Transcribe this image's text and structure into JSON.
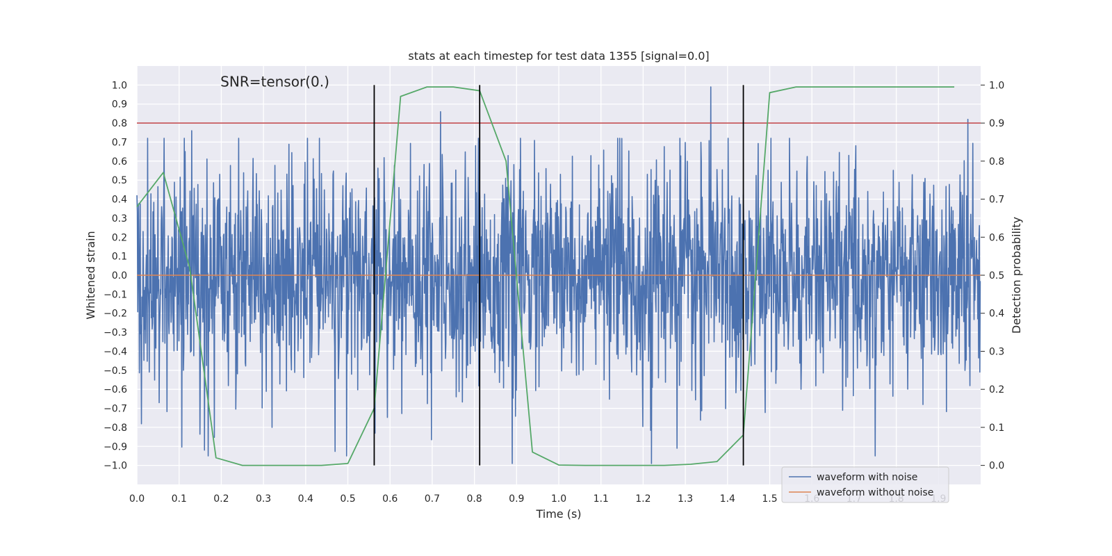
{
  "chart_data": {
    "type": "line",
    "title": "stats at each timestep for test data 1355 [signal=0.0]",
    "xlabel": "Time (s)",
    "ylabel_left": "Whitened strain",
    "ylabel_right": "Detection probability",
    "xlim": [
      0.0,
      2.0
    ],
    "ylim_left": [
      -1.1,
      1.1
    ],
    "ylim_right": [
      -0.05,
      1.05
    ],
    "xticks": [
      "0.0",
      "0.1",
      "0.2",
      "0.3",
      "0.4",
      "0.5",
      "0.6",
      "0.7",
      "0.8",
      "0.9",
      "1.0",
      "1.1",
      "1.2",
      "1.3",
      "1.4",
      "1.5",
      "1.6",
      "1.7",
      "1.8",
      "1.9"
    ],
    "yticks_left": [
      "1.0",
      "0.9",
      "0.8",
      "0.7",
      "0.6",
      "0.5",
      "0.4",
      "0.3",
      "0.2",
      "0.1",
      "0.0",
      "−0.1",
      "−0.2",
      "−0.3",
      "−0.4",
      "−0.5",
      "−0.6",
      "−0.7",
      "−0.8",
      "−0.9",
      "−1.0"
    ],
    "yticks_right": [
      "1.0",
      "0.9",
      "0.8",
      "0.7",
      "0.6",
      "0.5",
      "0.4",
      "0.3",
      "0.2",
      "0.1",
      "0.0"
    ],
    "annotation": "SNR=tensor(0.)",
    "grid": true,
    "legend_position": "bottom-right",
    "legend": [
      "waveform with noise",
      "waveform without noise"
    ],
    "series": [
      {
        "name": "waveform with noise",
        "axis": "left",
        "color": "#4c72b0",
        "noise_amplitude": 0.28,
        "peaks": [
          [
            0.13,
            0.76
          ],
          [
            0.72,
            0.86
          ],
          [
            1.36,
            0.99
          ],
          [
            1.97,
            0.82
          ],
          [
            0.16,
            -0.92
          ],
          [
            1.22,
            -0.99
          ],
          [
            1.28,
            -0.91
          ],
          [
            0.89,
            -0.99
          ],
          [
            1.75,
            -0.95
          ],
          [
            0.32,
            -0.8
          ]
        ]
      },
      {
        "name": "waveform without noise",
        "axis": "left",
        "color": "#dd8452",
        "x": [
          0.0,
          2.0
        ],
        "y": [
          0.0,
          0.0
        ]
      },
      {
        "axis": "right",
        "color": "#55a868",
        "x": [
          0.0,
          0.0625,
          0.125,
          0.1875,
          0.25,
          0.3125,
          0.375,
          0.4375,
          0.5,
          0.5625,
          0.625,
          0.6875,
          0.75,
          0.8125,
          0.875,
          0.9375,
          1.0,
          1.0625,
          1.125,
          1.1875,
          1.25,
          1.3125,
          1.375,
          1.4375,
          1.5,
          1.5625,
          1.625,
          1.6875,
          1.75,
          1.8125,
          1.875,
          1.9375
        ],
        "y": [
          0.68,
          0.77,
          0.52,
          0.02,
          0.0,
          0.0,
          0.0,
          0.0,
          0.005,
          0.15,
          0.97,
          0.995,
          0.995,
          0.985,
          0.8,
          0.035,
          0.001,
          0.0,
          0.0,
          0.0,
          0.0,
          0.003,
          0.01,
          0.08,
          0.98,
          0.995,
          0.995,
          0.995,
          0.995,
          0.995,
          0.995,
          0.995
        ]
      }
    ],
    "threshold_line": {
      "color": "#c44e52",
      "value_right": 0.9
    },
    "vertical_lines": [
      0.5625,
      0.8125,
      1.4375
    ],
    "vertical_line_range_left": [
      -1.0,
      1.0
    ]
  }
}
